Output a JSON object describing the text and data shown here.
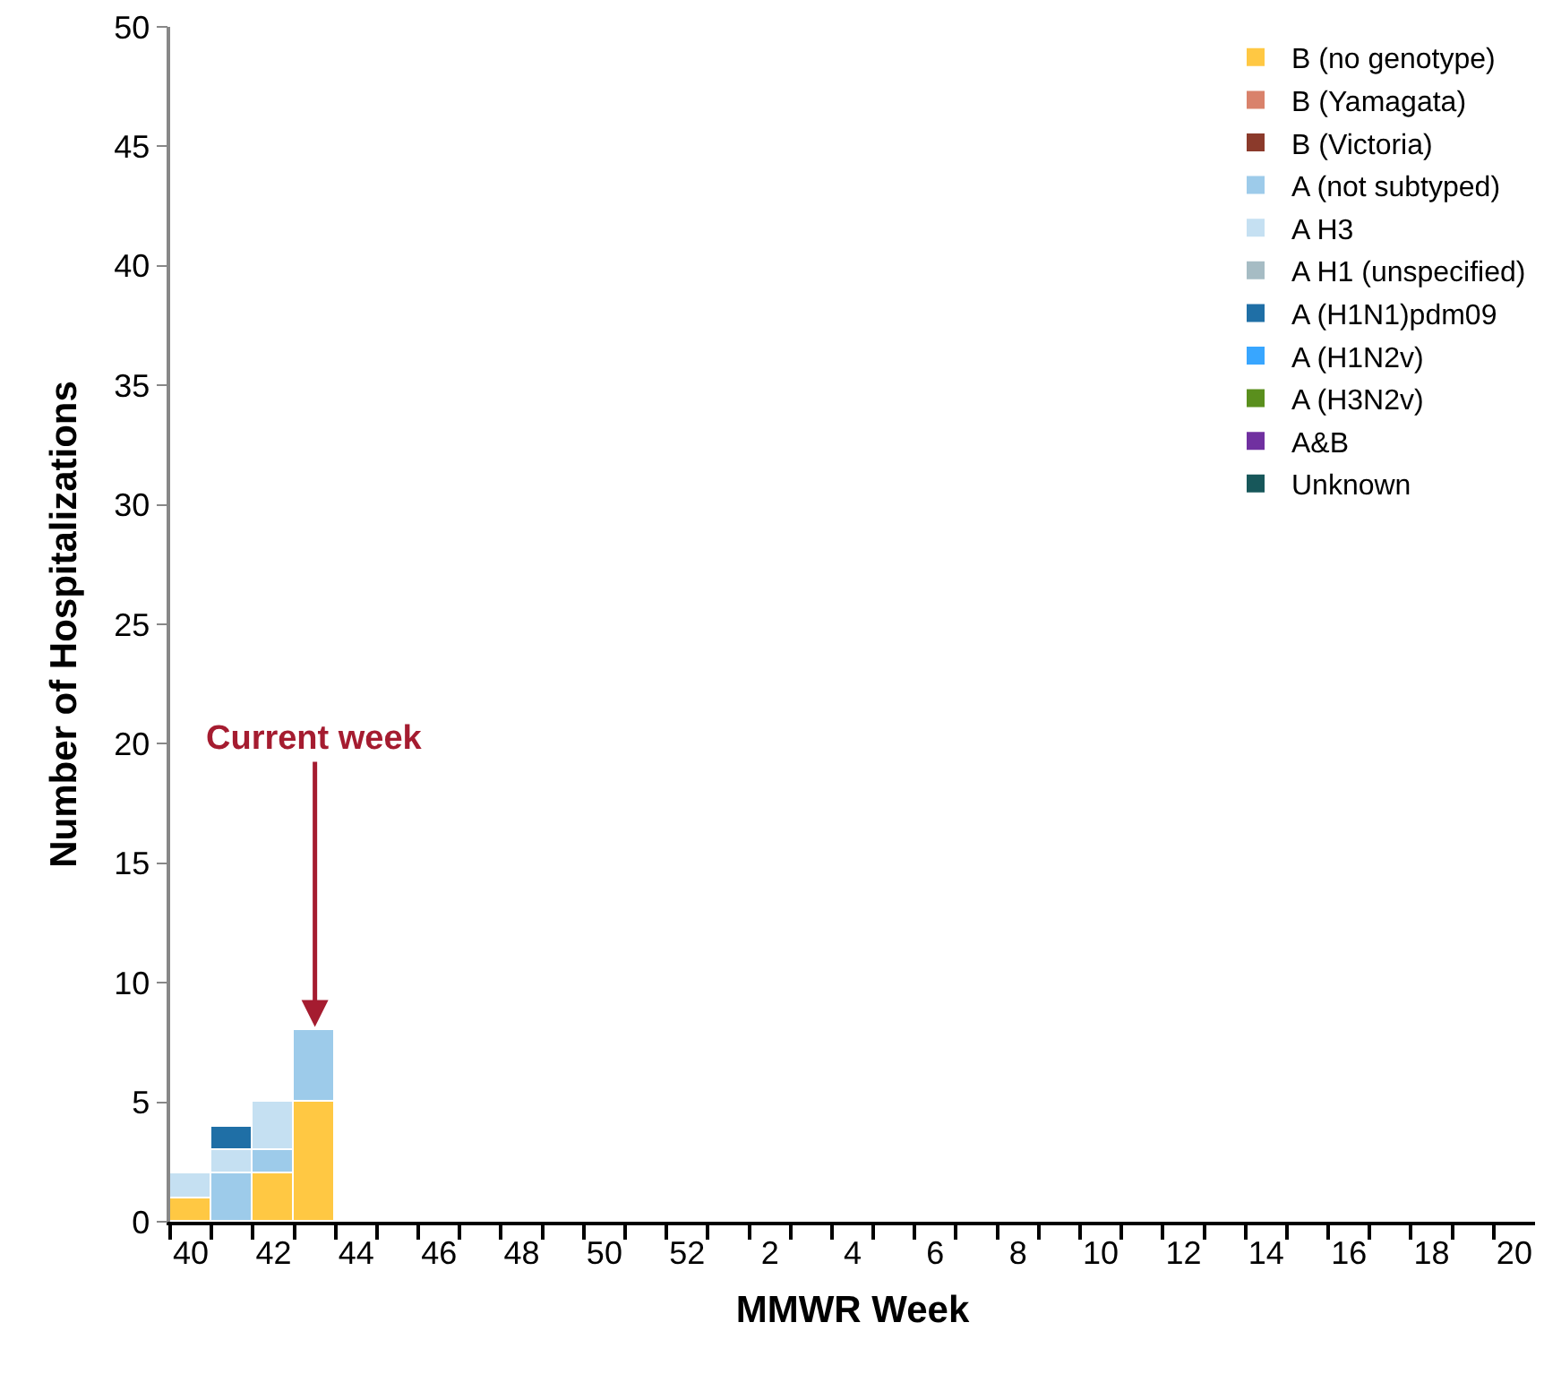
{
  "chart_data": {
    "type": "bar",
    "stacked": true,
    "xlabel": "MMWR Week",
    "ylabel": "Number of Hospitalizations",
    "categories": [
      "40",
      null,
      "42",
      null,
      "44",
      null,
      "46",
      null,
      "48",
      null,
      "50",
      null,
      "52",
      null,
      "2",
      null,
      "4",
      null,
      "6",
      null,
      "8",
      null,
      "10",
      null,
      "12",
      null,
      "14",
      null,
      "16",
      null,
      "18",
      null,
      "20"
    ],
    "series": [
      {
        "name": "B (no genotype)",
        "color": "#ffc843",
        "values": [
          1,
          0,
          2,
          5,
          null,
          null,
          null,
          null,
          null,
          null,
          null,
          null,
          null,
          null,
          null,
          null,
          null,
          null,
          null,
          null,
          null,
          null,
          null,
          null,
          null,
          null,
          null,
          null,
          null,
          null,
          null,
          null,
          null
        ]
      },
      {
        "name": "B (Yamagata)",
        "color": "#d9826b",
        "values": [
          0,
          0,
          0,
          0,
          null,
          null,
          null,
          null,
          null,
          null,
          null,
          null,
          null,
          null,
          null,
          null,
          null,
          null,
          null,
          null,
          null,
          null,
          null,
          null,
          null,
          null,
          null,
          null,
          null,
          null,
          null,
          null,
          null
        ]
      },
      {
        "name": "B (Victoria)",
        "color": "#8b3a2b",
        "values": [
          0,
          0,
          0,
          0,
          null,
          null,
          null,
          null,
          null,
          null,
          null,
          null,
          null,
          null,
          null,
          null,
          null,
          null,
          null,
          null,
          null,
          null,
          null,
          null,
          null,
          null,
          null,
          null,
          null,
          null,
          null,
          null,
          null
        ]
      },
      {
        "name": "A (not subtyped)",
        "color": "#9dcbea",
        "values": [
          0,
          2,
          1,
          3,
          null,
          null,
          null,
          null,
          null,
          null,
          null,
          null,
          null,
          null,
          null,
          null,
          null,
          null,
          null,
          null,
          null,
          null,
          null,
          null,
          null,
          null,
          null,
          null,
          null,
          null,
          null,
          null,
          null
        ]
      },
      {
        "name": "A H3",
        "color": "#c5e0f2",
        "values": [
          1,
          1,
          2,
          0,
          null,
          null,
          null,
          null,
          null,
          null,
          null,
          null,
          null,
          null,
          null,
          null,
          null,
          null,
          null,
          null,
          null,
          null,
          null,
          null,
          null,
          null,
          null,
          null,
          null,
          null,
          null,
          null,
          null
        ]
      },
      {
        "name": "A H1 (unspecified)",
        "color": "#a6bcc4",
        "values": [
          0,
          0,
          0,
          0,
          null,
          null,
          null,
          null,
          null,
          null,
          null,
          null,
          null,
          null,
          null,
          null,
          null,
          null,
          null,
          null,
          null,
          null,
          null,
          null,
          null,
          null,
          null,
          null,
          null,
          null,
          null,
          null,
          null
        ]
      },
      {
        "name": "A (H1N1)pdm09",
        "color": "#1f6fa6",
        "values": [
          0,
          1,
          0,
          0,
          null,
          null,
          null,
          null,
          null,
          null,
          null,
          null,
          null,
          null,
          null,
          null,
          null,
          null,
          null,
          null,
          null,
          null,
          null,
          null,
          null,
          null,
          null,
          null,
          null,
          null,
          null,
          null,
          null
        ]
      },
      {
        "name": "A (H1N2v)",
        "color": "#38a6ff",
        "values": [
          0,
          0,
          0,
          0,
          null,
          null,
          null,
          null,
          null,
          null,
          null,
          null,
          null,
          null,
          null,
          null,
          null,
          null,
          null,
          null,
          null,
          null,
          null,
          null,
          null,
          null,
          null,
          null,
          null,
          null,
          null,
          null,
          null
        ]
      },
      {
        "name": "A (H3N2v)",
        "color": "#5a8f1d",
        "values": [
          0,
          0,
          0,
          0,
          null,
          null,
          null,
          null,
          null,
          null,
          null,
          null,
          null,
          null,
          null,
          null,
          null,
          null,
          null,
          null,
          null,
          null,
          null,
          null,
          null,
          null,
          null,
          null,
          null,
          null,
          null,
          null,
          null
        ]
      },
      {
        "name": "A&B",
        "color": "#7030a0",
        "values": [
          0,
          0,
          0,
          0,
          null,
          null,
          null,
          null,
          null,
          null,
          null,
          null,
          null,
          null,
          null,
          null,
          null,
          null,
          null,
          null,
          null,
          null,
          null,
          null,
          null,
          null,
          null,
          null,
          null,
          null,
          null,
          null,
          null
        ]
      },
      {
        "name": "Unknown",
        "color": "#17575a",
        "values": [
          0,
          0,
          0,
          0,
          null,
          null,
          null,
          null,
          null,
          null,
          null,
          null,
          null,
          null,
          null,
          null,
          null,
          null,
          null,
          null,
          null,
          null,
          null,
          null,
          null,
          null,
          null,
          null,
          null,
          null,
          null,
          null,
          null
        ]
      }
    ],
    "ylim": [
      0,
      50
    ],
    "yticks": [
      0,
      5,
      10,
      15,
      20,
      25,
      30,
      35,
      40,
      45,
      50
    ],
    "annotations": [
      {
        "text": "Current week",
        "y": 8
      }
    ],
    "grid": false,
    "legend": "top right"
  }
}
